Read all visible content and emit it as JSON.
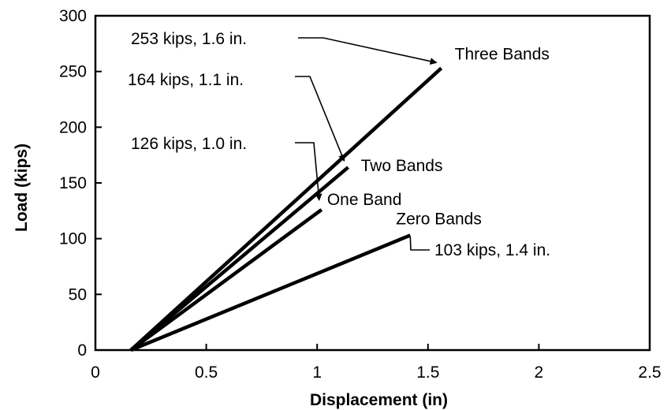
{
  "chart_data": {
    "type": "line",
    "title": "",
    "xlabel": "Displacement (in)",
    "ylabel": "Load (kips)",
    "xlim": [
      0,
      2.5
    ],
    "ylim": [
      0,
      300
    ],
    "xticks": [
      "0",
      "0.5",
      "1",
      "1.5",
      "2",
      "2.5"
    ],
    "yticks": [
      "0",
      "50",
      "100",
      "150",
      "200",
      "250",
      "300"
    ],
    "grid": false,
    "legend": "none",
    "series": [
      {
        "name": "Three Bands",
        "x": [
          0.16,
          1.56
        ],
        "y": [
          0,
          253
        ]
      },
      {
        "name": "Two Bands",
        "x": [
          0.16,
          1.14
        ],
        "y": [
          0,
          164
        ]
      },
      {
        "name": "One Band",
        "x": [
          0.16,
          1.02
        ],
        "y": [
          0,
          126
        ]
      },
      {
        "name": "Zero Bands",
        "x": [
          0.16,
          1.42
        ],
        "y": [
          0,
          103
        ]
      }
    ],
    "annotations": [
      {
        "text": "253 kips, 1.6 in.",
        "target": "Three Bands"
      },
      {
        "text": "164 kips, 1.1 in.",
        "target": "Two Bands"
      },
      {
        "text": "126 kips, 1.0 in.",
        "target": "One Band"
      },
      {
        "text": "103 kips, 1.4 in.",
        "target": "Zero Bands"
      }
    ],
    "color": "#000000"
  }
}
